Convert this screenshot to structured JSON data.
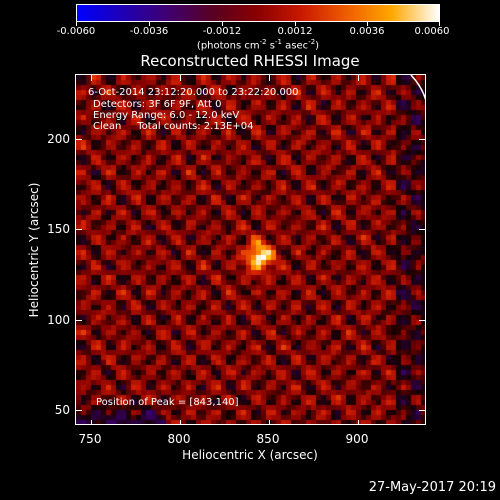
{
  "colorbar": {
    "tick_labels": [
      "-0.0060",
      "-0.0036",
      "-0.0012",
      "0.0012",
      "0.0036",
      "0.0060"
    ],
    "units": "(photons cm-2 s-1 asec-2)"
  },
  "title": "Reconstructed RHESSI Image",
  "info": {
    "line1": "6-Oct-2014 23:12:20.000 to 23:22:20.000",
    "line2": "Detectors: 3F 6F 9F, Att 0",
    "line3": "Energy Range: 6.0 - 12.0 keV",
    "line4": "Clean     Total counts: 2.13E+04"
  },
  "peak": "Position of Peak = [843,140]",
  "x_axis": {
    "label": "Heliocentric X (arcsec)",
    "ticks": [
      "750",
      "800",
      "850",
      "900"
    ]
  },
  "y_axis": {
    "label": "Heliocentric Y (arcsec)",
    "ticks": [
      "200",
      "150",
      "100",
      "50"
    ]
  },
  "timestamp": "27-May-2017 20:19",
  "chart_data": {
    "type": "heatmap",
    "title": "Reconstructed RHESSI Image",
    "xlabel": "Heliocentric X (arcsec)",
    "ylabel": "Heliocentric Y (arcsec)",
    "xlim": [
      742,
      938
    ],
    "ylim": [
      44,
      240
    ],
    "zlim": [
      -0.006,
      0.006
    ],
    "peak": [
      843,
      140
    ],
    "colormap": "blue-black-red-yellow-white"
  }
}
